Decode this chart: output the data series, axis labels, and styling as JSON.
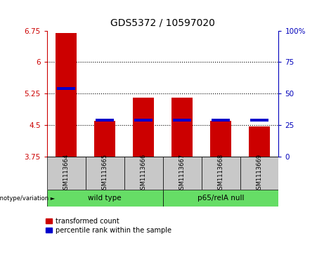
{
  "title": "GDS5372 / 10597020",
  "samples": [
    "GSM1113664",
    "GSM1113665",
    "GSM1113666",
    "GSM1113667",
    "GSM1113668",
    "GSM1113669"
  ],
  "red_values": [
    6.7,
    4.6,
    5.15,
    5.15,
    4.6,
    4.48
  ],
  "blue_values": [
    5.37,
    4.62,
    4.62,
    4.62,
    4.62,
    4.62
  ],
  "ylim_left": [
    3.75,
    6.75
  ],
  "ylim_right": [
    0,
    100
  ],
  "yticks_left": [
    3.75,
    4.5,
    5.25,
    6.0,
    6.75
  ],
  "ytick_labels_left": [
    "3.75",
    "4.5",
    "5.25",
    "6",
    "6.75"
  ],
  "yticks_right": [
    0,
    25,
    50,
    75,
    100
  ],
  "ytick_labels_right": [
    "0",
    "25",
    "50",
    "75",
    "100%"
  ],
  "hlines": [
    4.5,
    5.25,
    6.0
  ],
  "genotype_label": "genotype/variation ►",
  "group1_label": "wild type",
  "group2_label": "p65/relA null",
  "legend_red": "transformed count",
  "legend_blue": "percentile rank within the sample",
  "bar_width": 0.55,
  "bar_bottom": 3.75,
  "red_color": "#CC0000",
  "blue_color": "#0000CC",
  "left_axis_color": "#CC0000",
  "right_axis_color": "#0000BB",
  "gray_box_color": "#C8C8C8",
  "green_box_color": "#66DD66"
}
